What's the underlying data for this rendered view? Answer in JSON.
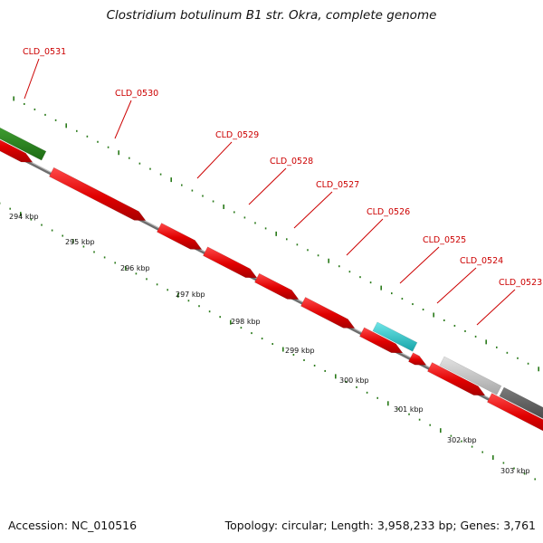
{
  "title": "Clostridium botulinum B1 str. Okra, complete genome",
  "accession": "Accession: NC_010516",
  "topology": "Topology: circular; Length: 3,958,233 bp; Genes: 3,761",
  "colors": {
    "red_gene": "#ee0000",
    "green_gene": "#2a8a1e",
    "cyan_gene": "#22c8cc",
    "light_gray_gene": "#c4c4c4",
    "dark_gray_gene": "#5a5a5a",
    "backbone": "#8a8a8a",
    "tick": "#2a7a1a",
    "label": "#cc0000"
  },
  "gene_labels": [
    "CLD_0531",
    "CLD_0530",
    "CLD_0529",
    "CLD_0528",
    "CLD_0527",
    "CLD_0526",
    "CLD_0525",
    "CLD_0524",
    "CLD_0523"
  ],
  "scale_labels": [
    "294 kbp",
    "295 kbp",
    "296 kbp",
    "297 kbp",
    "298 kbp",
    "299 kbp",
    "300 kbp",
    "301 kbp",
    "302 kbp",
    "303 kbp"
  ]
}
